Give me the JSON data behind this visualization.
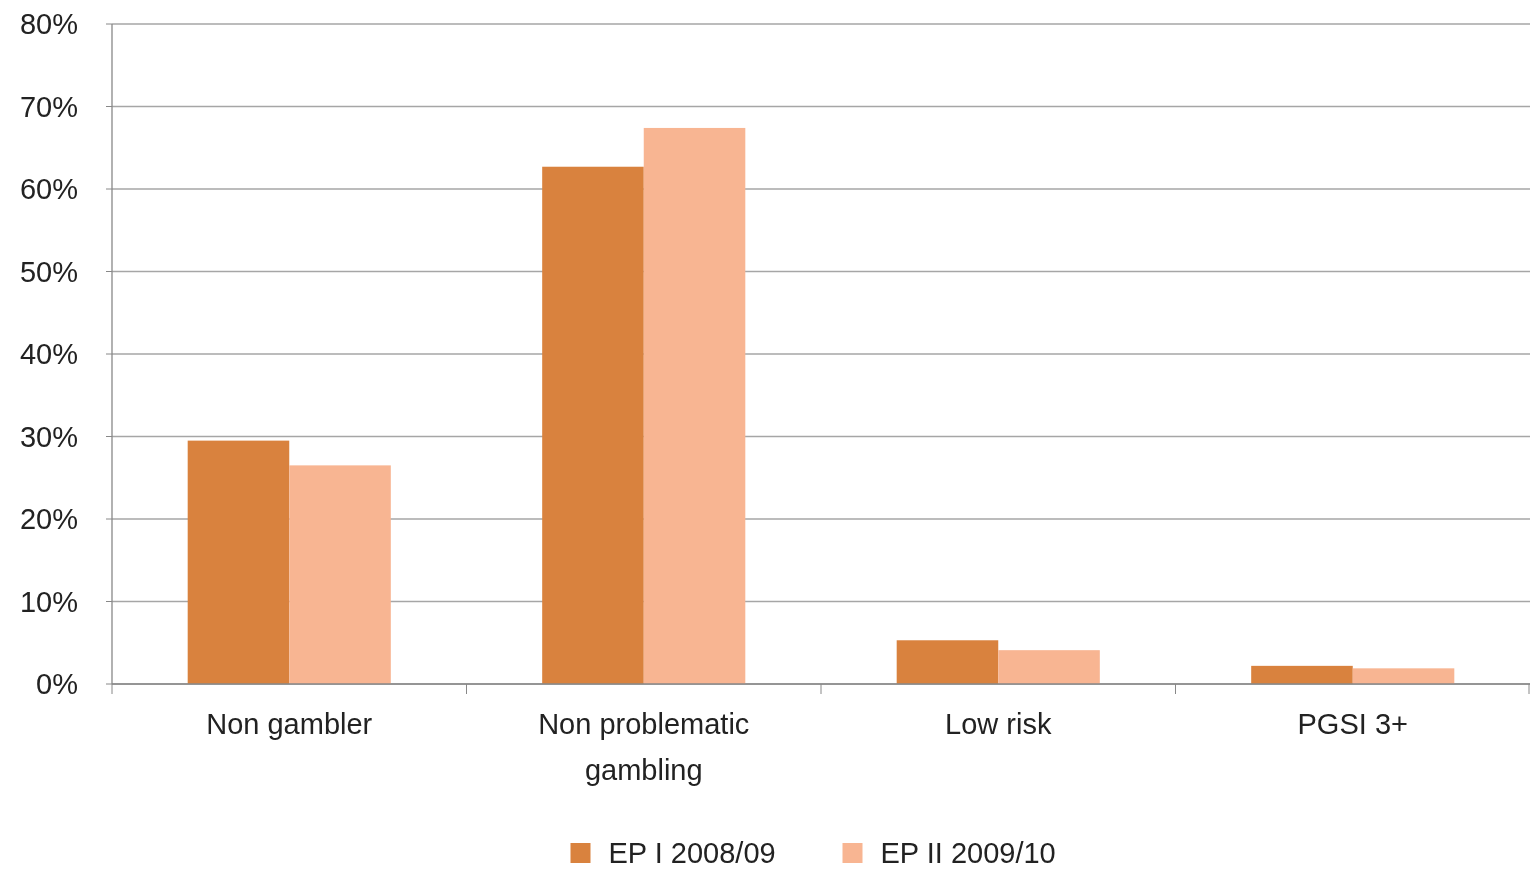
{
  "chart_data": {
    "type": "bar",
    "categories": [
      "Non gambler",
      "Non problematic gambling",
      "Low risk",
      "PGSI 3+"
    ],
    "series": [
      {
        "name": "EP I 2008/09",
        "color": "#d9823e",
        "values": [
          29.5,
          62.7,
          5.3,
          2.2
        ]
      },
      {
        "name": "EP II 2009/10",
        "color": "#f8b592",
        "values": [
          26.5,
          67.4,
          4.1,
          1.9
        ]
      }
    ],
    "ylim": [
      0,
      80
    ],
    "yticks": [
      {
        "value": 0,
        "label": "0%"
      },
      {
        "value": 10,
        "label": "10%"
      },
      {
        "value": 20,
        "label": "20%"
      },
      {
        "value": 30,
        "label": "30%"
      },
      {
        "value": 40,
        "label": "40%"
      },
      {
        "value": 50,
        "label": "50%"
      },
      {
        "value": 60,
        "label": "60%"
      },
      {
        "value": 70,
        "label": "70%"
      },
      {
        "value": 80,
        "label": "80%"
      }
    ],
    "grid": "y",
    "legend": "bottom"
  }
}
